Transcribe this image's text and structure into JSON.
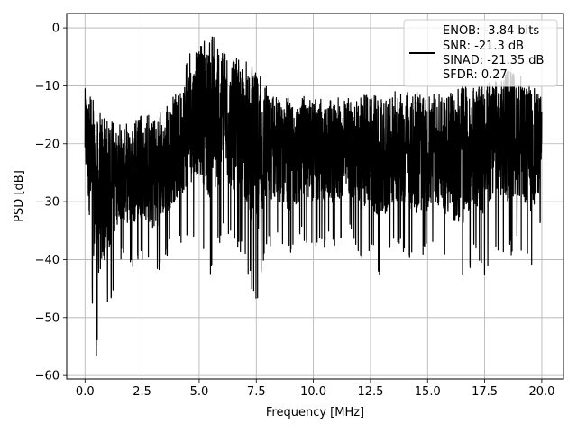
{
  "chart_data": {
    "type": "line",
    "title": "",
    "xlabel": "Frequency [MHz]",
    "ylabel": "PSD [dB]",
    "xlim": [
      -0.8,
      20.95
    ],
    "ylim": [
      -60.6,
      2.5
    ],
    "xticks": [
      0.0,
      2.5,
      5.0,
      7.5,
      10.0,
      12.5,
      15.0,
      17.5,
      20.0
    ],
    "xtick_labels": [
      "0.0",
      "2.5",
      "5.0",
      "7.5",
      "10.0",
      "12.5",
      "15.0",
      "17.5",
      "20.0"
    ],
    "yticks": [
      0,
      -10,
      -20,
      -30,
      -40,
      -50,
      -60
    ],
    "ytick_labels": [
      "0",
      "−10",
      "−20",
      "−30",
      "−40",
      "−50",
      "−60"
    ],
    "grid": true,
    "legend_position": "top-right",
    "legend_entries": [
      "ENOB: -3.84 bits",
      "SNR: -21.3 dB",
      "SINAD: -21.35 dB",
      "SFDR: 0.27"
    ],
    "series": [
      {
        "color": "#000000",
        "envelope": {
          "x": [
            0.0,
            0.5,
            1.0,
            1.5,
            2.0,
            2.5,
            3.0,
            3.5,
            4.0,
            4.5,
            5.0,
            5.5,
            6.0,
            6.5,
            7.0,
            7.5,
            8.0,
            8.5,
            9.0,
            9.5,
            10.0,
            10.5,
            11.0,
            11.5,
            12.0,
            12.5,
            13.0,
            13.5,
            14.0,
            14.5,
            15.0,
            15.5,
            16.0,
            16.5,
            17.0,
            17.5,
            18.0,
            18.5,
            19.0,
            19.5,
            20.0
          ],
          "upper": [
            -9,
            -13,
            -16,
            -16,
            -16,
            -15,
            -15,
            -14,
            -11,
            -5,
            -2,
            -0.5,
            -4,
            -5,
            -6,
            -5,
            -10,
            -12,
            -12,
            -12,
            -11,
            -12,
            -12,
            -12,
            -12,
            -11,
            -12,
            -11,
            -11,
            -11,
            -12,
            -11,
            -11,
            -10,
            -10,
            -10,
            -7,
            -7,
            -8,
            -9,
            -10
          ],
          "lower": [
            -32,
            -57,
            -50,
            -40,
            -42,
            -40,
            -44,
            -40,
            -38,
            -37,
            -35,
            -43,
            -36,
            -38,
            -40,
            -49,
            -38,
            -38,
            -40,
            -37,
            -38,
            -38,
            -38,
            -36,
            -40,
            -39,
            -44,
            -38,
            -39,
            -41,
            -40,
            -39,
            -43,
            -45,
            -40,
            -43,
            -38,
            -40,
            -38,
            -42,
            -35
          ]
        }
      }
    ]
  }
}
